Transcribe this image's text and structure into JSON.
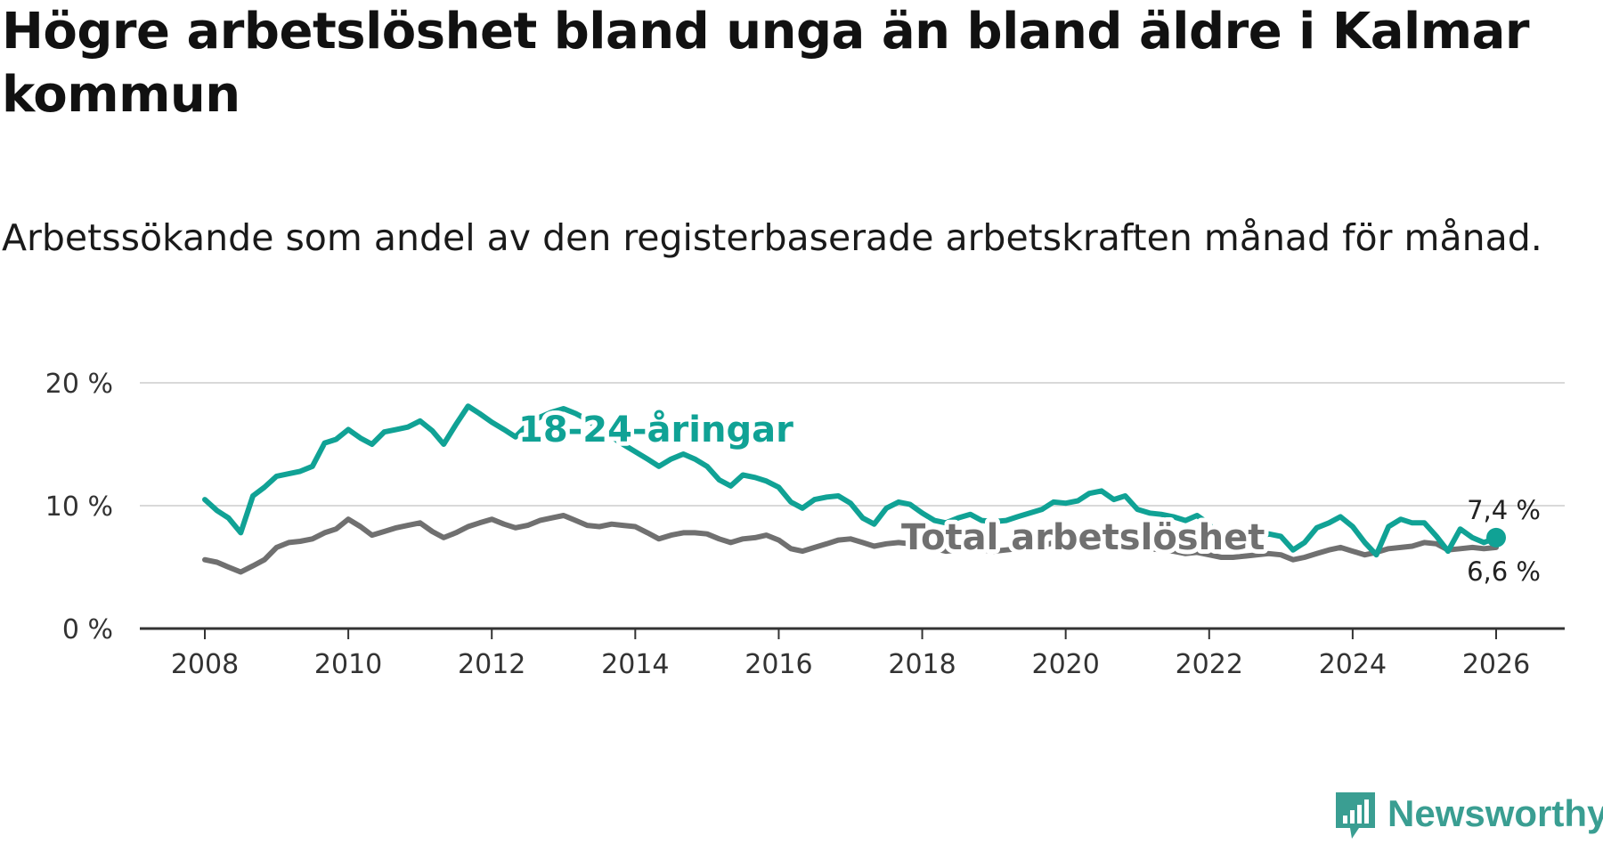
{
  "title": "Högre arbetslöshet bland unga än bland äldre i Kalmar kommun",
  "subtitle": "Arbetssökande som andel av den registerbaserade arbetskraften månad för månad.",
  "brand": {
    "name": "Newsworthy",
    "color": "#3a9e92",
    "icon": "bar-chart-speech-bubble-icon"
  },
  "colors": {
    "youth": "#10a295",
    "total": "#707070",
    "grid": "#d9d9d9",
    "axis": "#333333"
  },
  "chart_data": {
    "type": "line",
    "xlim": [
      2007.1,
      2026.1
    ],
    "ylim": [
      0,
      20
    ],
    "x_ticks": [
      2008,
      2010,
      2012,
      2014,
      2016,
      2018,
      2020,
      2022,
      2024,
      2026
    ],
    "y_ticks": [
      0,
      10,
      20
    ],
    "y_tick_labels": [
      "0 %",
      "10 %",
      "20 %"
    ],
    "grid": "horizontal",
    "legend": "inline labels",
    "series": [
      {
        "name": "18-24-åringar",
        "color": "#10a295",
        "end_label": "7,4 %",
        "x": [
          2008.0,
          2008.17,
          2008.33,
          2008.5,
          2008.67,
          2008.83,
          2009.0,
          2009.17,
          2009.33,
          2009.5,
          2009.67,
          2009.83,
          2010.0,
          2010.17,
          2010.33,
          2010.5,
          2010.67,
          2010.83,
          2011.0,
          2011.17,
          2011.33,
          2011.5,
          2011.67,
          2011.83,
          2012.0,
          2012.17,
          2012.33,
          2012.5,
          2012.67,
          2012.83,
          2013.0,
          2013.17,
          2013.33,
          2013.5,
          2013.67,
          2013.83,
          2014.0,
          2014.17,
          2014.33,
          2014.5,
          2014.67,
          2014.83,
          2015.0,
          2015.17,
          2015.33,
          2015.5,
          2015.67,
          2015.83,
          2016.0,
          2016.17,
          2016.33,
          2016.5,
          2016.67,
          2016.83,
          2017.0,
          2017.17,
          2017.33,
          2017.5,
          2017.67,
          2017.83,
          2018.0,
          2018.17,
          2018.33,
          2018.5,
          2018.67,
          2018.83,
          2019.0,
          2019.17,
          2019.33,
          2019.5,
          2019.67,
          2019.83,
          2020.0,
          2020.17,
          2020.33,
          2020.5,
          2020.67,
          2020.83,
          2021.0,
          2021.17,
          2021.33,
          2021.5,
          2021.67,
          2021.83,
          2022.0,
          2022.17,
          2022.33,
          2022.5,
          2022.67,
          2022.83,
          2023.0,
          2023.17,
          2023.33,
          2023.5,
          2023.67,
          2023.83,
          2024.0,
          2024.17,
          2024.33,
          2024.5,
          2024.67,
          2024.83,
          2025.0,
          2025.17,
          2025.33,
          2025.5,
          2025.67,
          2025.83,
          2026.0
        ],
        "values": [
          10.5,
          9.6,
          9.0,
          7.8,
          10.8,
          11.5,
          12.4,
          12.6,
          12.8,
          13.2,
          15.1,
          15.4,
          16.2,
          15.5,
          15.0,
          16.0,
          16.2,
          16.4,
          16.9,
          16.1,
          15.0,
          16.6,
          18.1,
          17.5,
          16.8,
          16.2,
          15.6,
          16.6,
          17.2,
          17.6,
          17.9,
          17.5,
          17.0,
          16.2,
          15.6,
          15.0,
          14.4,
          13.8,
          13.2,
          13.8,
          14.2,
          13.8,
          13.2,
          12.1,
          11.6,
          12.5,
          12.3,
          12.0,
          11.5,
          10.3,
          9.8,
          10.5,
          10.7,
          10.8,
          10.2,
          9.0,
          8.5,
          9.8,
          10.3,
          10.1,
          9.4,
          8.8,
          8.6,
          9.0,
          9.3,
          8.8,
          8.7,
          8.8,
          9.1,
          9.4,
          9.7,
          10.3,
          10.2,
          10.4,
          11.0,
          11.2,
          10.5,
          10.8,
          9.7,
          9.4,
          9.3,
          9.1,
          8.8,
          9.2,
          8.5,
          6.8,
          6.8,
          7.5,
          7.4,
          7.7,
          7.5,
          6.4,
          7.0,
          8.2,
          8.6,
          9.1,
          8.3,
          7.0,
          6.0,
          8.3,
          8.9,
          8.6,
          8.6,
          7.5,
          6.3,
          8.1,
          7.4,
          7.0,
          7.4
        ]
      },
      {
        "name": "Total arbetslöshet",
        "color": "#707070",
        "end_label": "6,6 %",
        "x": [
          2008.0,
          2008.17,
          2008.33,
          2008.5,
          2008.67,
          2008.83,
          2009.0,
          2009.17,
          2009.33,
          2009.5,
          2009.67,
          2009.83,
          2010.0,
          2010.17,
          2010.33,
          2010.5,
          2010.67,
          2010.83,
          2011.0,
          2011.17,
          2011.33,
          2011.5,
          2011.67,
          2011.83,
          2012.0,
          2012.17,
          2012.33,
          2012.5,
          2012.67,
          2012.83,
          2013.0,
          2013.17,
          2013.33,
          2013.5,
          2013.67,
          2013.83,
          2014.0,
          2014.17,
          2014.33,
          2014.5,
          2014.67,
          2014.83,
          2015.0,
          2015.17,
          2015.33,
          2015.5,
          2015.67,
          2015.83,
          2016.0,
          2016.17,
          2016.33,
          2016.5,
          2016.67,
          2016.83,
          2017.0,
          2017.17,
          2017.33,
          2017.5,
          2017.67,
          2017.83,
          2018.0,
          2018.17,
          2018.33,
          2018.5,
          2018.67,
          2018.83,
          2019.0,
          2019.17,
          2019.33,
          2019.5,
          2019.67,
          2019.83,
          2020.0,
          2020.17,
          2020.33,
          2020.5,
          2020.67,
          2020.83,
          2021.0,
          2021.17,
          2021.33,
          2021.5,
          2021.67,
          2021.83,
          2022.0,
          2022.17,
          2022.33,
          2022.5,
          2022.67,
          2022.83,
          2023.0,
          2023.17,
          2023.33,
          2023.5,
          2023.67,
          2023.83,
          2024.0,
          2024.17,
          2024.33,
          2024.5,
          2024.67,
          2024.83,
          2025.0,
          2025.17,
          2025.33,
          2025.5,
          2025.67,
          2025.83,
          2026.0
        ],
        "values": [
          5.6,
          5.4,
          5.0,
          4.6,
          5.1,
          5.6,
          6.6,
          7.0,
          7.1,
          7.3,
          7.8,
          8.1,
          8.9,
          8.3,
          7.6,
          7.9,
          8.2,
          8.4,
          8.6,
          7.9,
          7.4,
          7.8,
          8.3,
          8.6,
          8.9,
          8.5,
          8.2,
          8.4,
          8.8,
          9.0,
          9.2,
          8.8,
          8.4,
          8.3,
          8.5,
          8.4,
          8.3,
          7.8,
          7.3,
          7.6,
          7.8,
          7.8,
          7.7,
          7.3,
          7.0,
          7.3,
          7.4,
          7.6,
          7.2,
          6.5,
          6.3,
          6.6,
          6.9,
          7.2,
          7.3,
          7.0,
          6.7,
          6.9,
          7.0,
          6.9,
          6.7,
          6.5,
          6.3,
          6.4,
          6.5,
          6.4,
          6.3,
          6.4,
          6.5,
          6.6,
          6.7,
          7.0,
          6.8,
          6.9,
          7.1,
          7.2,
          6.9,
          7.0,
          6.6,
          6.5,
          6.4,
          6.3,
          6.1,
          6.2,
          6.0,
          5.8,
          5.8,
          5.9,
          6.0,
          6.1,
          6.0,
          5.6,
          5.8,
          6.1,
          6.4,
          6.6,
          6.3,
          6.0,
          6.2,
          6.5,
          6.6,
          6.7,
          7.0,
          6.9,
          6.4,
          6.5,
          6.6,
          6.5,
          6.6
        ]
      }
    ]
  }
}
